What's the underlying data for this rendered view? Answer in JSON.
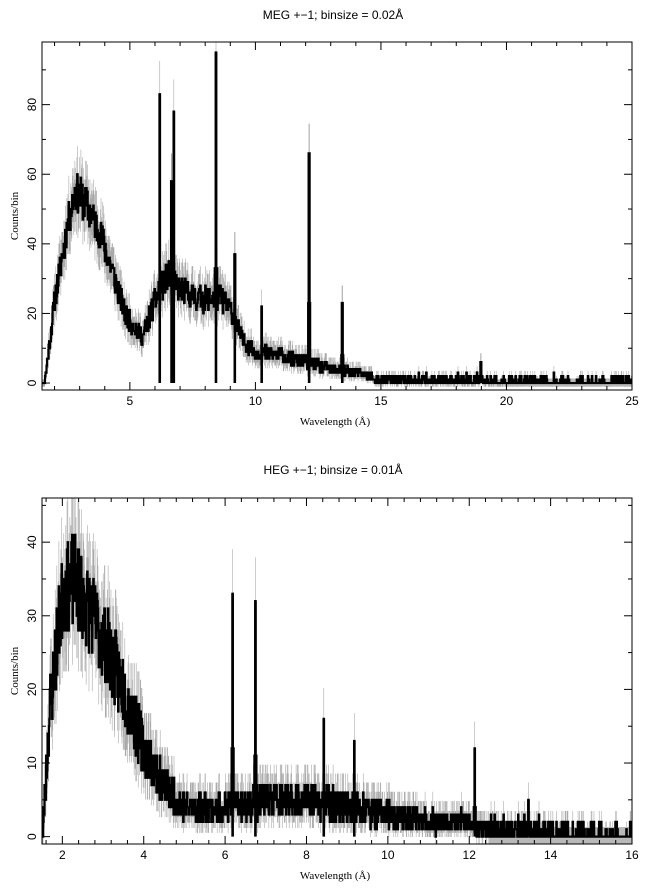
{
  "chart_data": [
    {
      "type": "line",
      "title": "MEG +−1; binsize = 0.02Å",
      "xlabel": "Wavelength (Å)",
      "ylabel": "Counts/bin",
      "xlim": [
        1.5,
        25
      ],
      "ylim": [
        -2,
        98
      ],
      "x_ticks": [
        5,
        10,
        15,
        20,
        25
      ],
      "y_ticks": [
        0,
        20,
        40,
        60,
        80
      ],
      "grid": false,
      "envelope": [
        [
          1.6,
          0
        ],
        [
          2.0,
          24
        ],
        [
          2.5,
          45
        ],
        [
          2.8,
          55
        ],
        [
          3.2,
          52
        ],
        [
          3.8,
          43
        ],
        [
          4.3,
          32
        ],
        [
          4.8,
          20
        ],
        [
          5.5,
          13
        ],
        [
          6.0,
          24
        ],
        [
          6.5,
          31
        ],
        [
          7.0,
          27
        ],
        [
          7.5,
          25
        ],
        [
          8.0,
          24
        ],
        [
          8.6,
          25
        ],
        [
          9.0,
          21
        ],
        [
          9.5,
          12
        ],
        [
          10.0,
          9
        ],
        [
          11.0,
          8
        ],
        [
          12.0,
          6
        ],
        [
          13.0,
          4
        ],
        [
          14.0,
          3
        ],
        [
          15.0,
          1.6
        ],
        [
          17.0,
          1.2
        ],
        [
          20.0,
          0.8
        ],
        [
          25.0,
          0.5
        ]
      ],
      "peaks": [
        {
          "x": 6.18,
          "y": 83
        },
        {
          "x": 6.65,
          "y": 58
        },
        {
          "x": 6.74,
          "y": 78
        },
        {
          "x": 8.42,
          "y": 95
        },
        {
          "x": 9.17,
          "y": 37
        },
        {
          "x": 10.24,
          "y": 22
        },
        {
          "x": 12.13,
          "y": 66
        },
        {
          "x": 13.45,
          "y": 23
        },
        {
          "x": 18.97,
          "y": 6
        }
      ],
      "noise": 0.35,
      "error_band_from": 20,
      "seed": 11
    },
    {
      "type": "line",
      "title": "HEG +−1; binsize = 0.01Å",
      "xlabel": "Wavelength (Å)",
      "ylabel": "Counts/bin",
      "xlim": [
        1.5,
        16
      ],
      "ylim": [
        -1,
        46
      ],
      "x_ticks": [
        2,
        4,
        6,
        8,
        10,
        12,
        14,
        16
      ],
      "y_ticks": [
        0,
        10,
        20,
        30,
        40
      ],
      "grid": false,
      "envelope": [
        [
          1.5,
          0
        ],
        [
          1.7,
          18
        ],
        [
          2.0,
          33
        ],
        [
          2.3,
          35
        ],
        [
          2.7,
          30
        ],
        [
          3.0,
          27
        ],
        [
          3.5,
          20
        ],
        [
          4.0,
          12
        ],
        [
          4.5,
          7
        ],
        [
          5.0,
          4
        ],
        [
          6.0,
          4
        ],
        [
          7.0,
          5
        ],
        [
          8.0,
          5
        ],
        [
          9.0,
          4
        ],
        [
          10.0,
          3
        ],
        [
          11.0,
          2
        ],
        [
          12.0,
          2
        ],
        [
          13.0,
          1.2
        ],
        [
          14.0,
          0.8
        ],
        [
          16.0,
          0.5
        ]
      ],
      "peaks": [
        {
          "x": 6.18,
          "y": 33
        },
        {
          "x": 6.74,
          "y": 32
        },
        {
          "x": 8.42,
          "y": 16
        },
        {
          "x": 9.17,
          "y": 13
        },
        {
          "x": 12.13,
          "y": 12
        },
        {
          "x": 13.45,
          "y": 5
        }
      ],
      "noise": 0.5,
      "error_band_from": 12.5,
      "seed": 23
    }
  ]
}
